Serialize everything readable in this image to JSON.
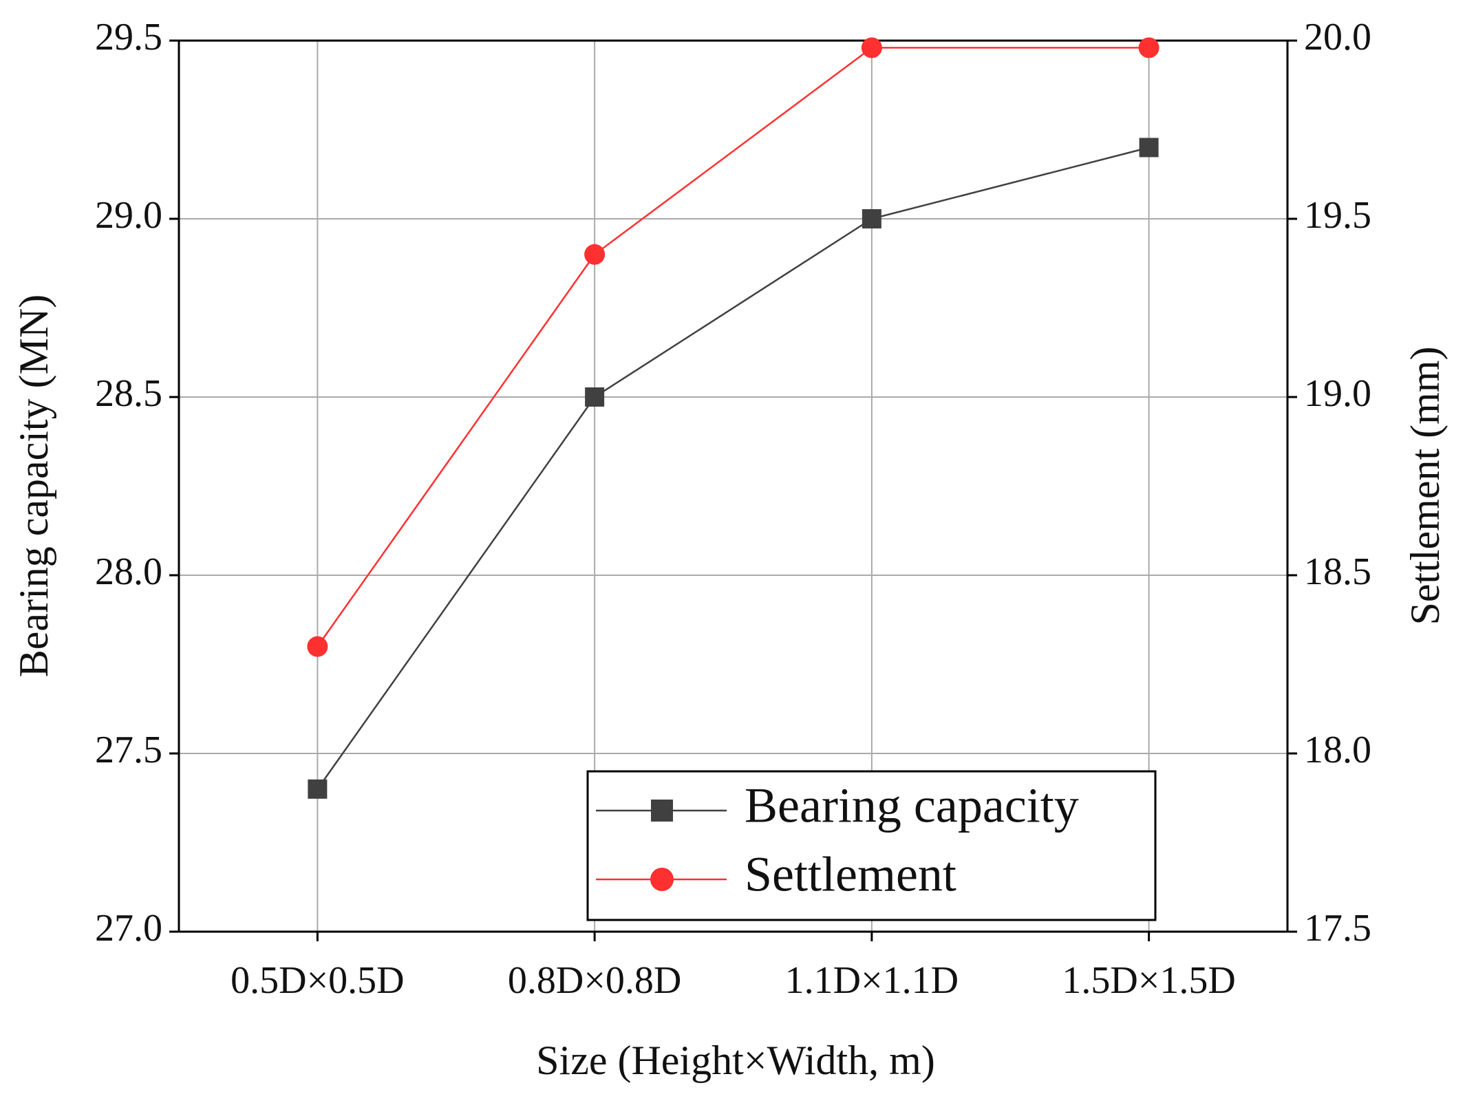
{
  "chart_data": {
    "type": "line",
    "x_label": "Size (Height×Width, m)",
    "y_label": "Bearing capacity (MN)",
    "y2_label": "Settlement (mm)",
    "categories": [
      "0.5D×0.5D",
      "0.8D×0.8D",
      "1.1D×1.1D",
      "1.5D×1.5D"
    ],
    "series": [
      {
        "name": "Bearing capacity",
        "color": "#404040",
        "marker": "square",
        "values": [
          27.4,
          28.5,
          29.0,
          29.2
        ]
      },
      {
        "name": "Settlement",
        "color": "#ff3030",
        "marker": "circle",
        "axis": "y2",
        "values": [
          18.3,
          19.4,
          19.98,
          19.98
        ]
      }
    ],
    "ylim": [
      27.0,
      29.5
    ],
    "yticks": [
      {
        "value": 27.0,
        "label": "27.0"
      },
      {
        "value": 27.5,
        "label": "27.5"
      },
      {
        "value": 28.0,
        "label": "28.0"
      },
      {
        "value": 28.5,
        "label": "28.5"
      },
      {
        "value": 29.0,
        "label": "29.0"
      },
      {
        "value": 29.5,
        "label": "29.5"
      }
    ],
    "y2lim": [
      17.5,
      20.0
    ],
    "y2ticks": [
      {
        "value": 17.5,
        "label": "17.5"
      },
      {
        "value": 18.0,
        "label": "18.0"
      },
      {
        "value": 18.5,
        "label": "18.5"
      },
      {
        "value": 19.0,
        "label": "19.0"
      },
      {
        "value": 19.5,
        "label": "19.5"
      },
      {
        "value": 20.0,
        "label": "20.0"
      }
    ],
    "grid": true,
    "legend": "lower right"
  }
}
